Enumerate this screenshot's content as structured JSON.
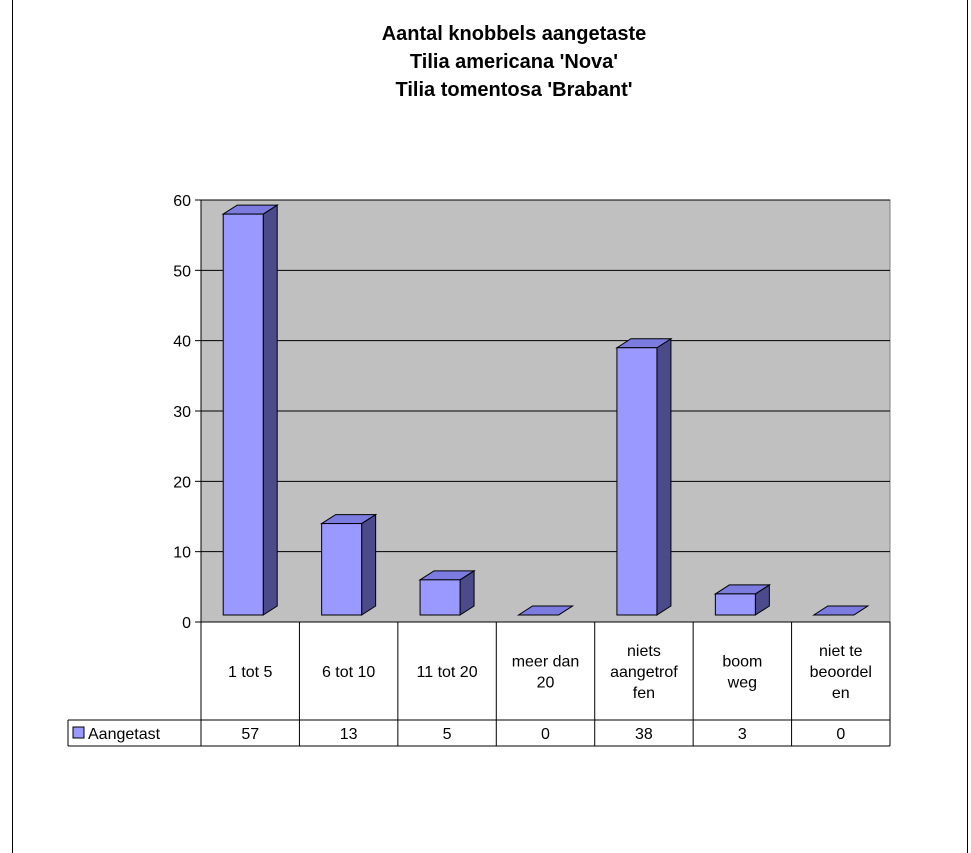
{
  "chart_data": {
    "type": "bar",
    "title": [
      "Aantal knobbels aangetaste",
      "Tilia americana 'Nova'",
      "Tilia tomentosa 'Brabant'"
    ],
    "xlabel": "",
    "ylabel": "",
    "ylim": [
      0,
      60
    ],
    "yticks": [
      0,
      10,
      20,
      30,
      40,
      50,
      60
    ],
    "grid": true,
    "legend_position": "data-table",
    "categories": [
      [
        "1 tot 5"
      ],
      [
        "6 tot 10"
      ],
      [
        "11 tot 20"
      ],
      [
        "meer dan",
        "20"
      ],
      [
        "niets",
        "aangetrof",
        "fen"
      ],
      [
        "boom",
        "weg"
      ],
      [
        "niet te",
        "beoordel",
        "en"
      ]
    ],
    "series": [
      {
        "name": "Aangetast",
        "values": [
          57,
          13,
          5,
          0,
          38,
          3,
          0
        ],
        "color": "#9999ff"
      }
    ],
    "plot_background": "#c0c0c0"
  }
}
